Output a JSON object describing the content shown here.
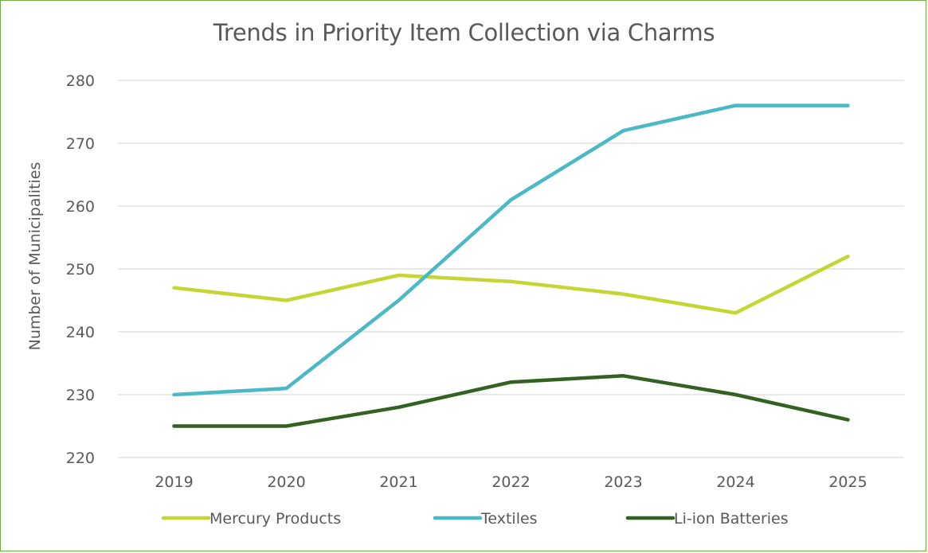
{
  "chart_data": {
    "type": "line",
    "title": "Trends in Priority Item Collection via Charms",
    "xlabel": "",
    "ylabel": "Number of Municipalities",
    "categories": [
      "2019",
      "2020",
      "2021",
      "2022",
      "2023",
      "2024",
      "2025"
    ],
    "ylim": [
      220,
      280
    ],
    "yticks": [
      220,
      230,
      240,
      250,
      260,
      270,
      280
    ],
    "grid": true,
    "legend_position": "bottom",
    "series": [
      {
        "name": "Mercury Products",
        "color": "#c5d634",
        "values": [
          247,
          245,
          249,
          248,
          246,
          243,
          252
        ]
      },
      {
        "name": "Textiles",
        "color": "#4bb8c6",
        "values": [
          230,
          231,
          245,
          261,
          272,
          276,
          276
        ]
      },
      {
        "name": "Li-ion Batteries",
        "color": "#336122",
        "values": [
          225,
          225,
          228,
          232,
          233,
          230,
          226
        ]
      }
    ]
  },
  "colors": {
    "frame_border": "#70ad47",
    "gridline": "#d9d9d9",
    "text": "#595959"
  }
}
